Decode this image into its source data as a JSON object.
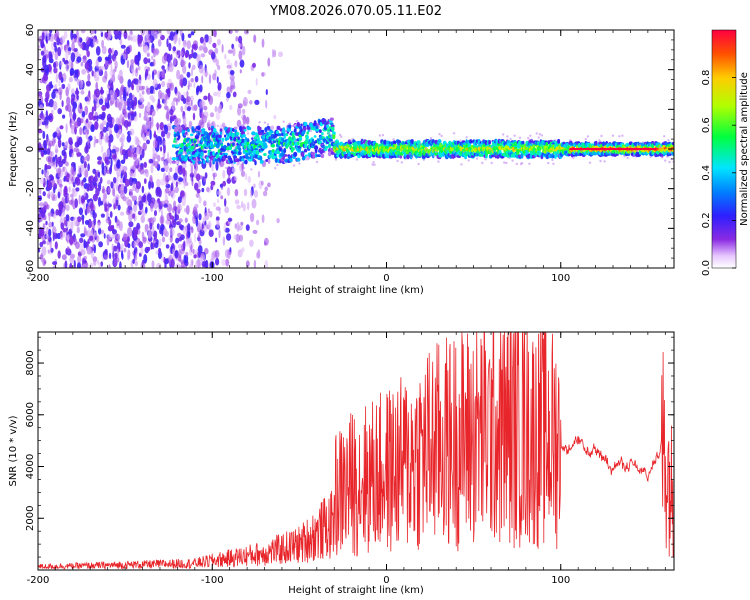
{
  "title": "YM08.2026.070.05.11.E02",
  "colors": {
    "snr_line": "#e8252a",
    "background": "#ffffff"
  },
  "chart_data": [
    {
      "type": "heatmap",
      "xlabel": "Height of straight line (km)",
      "ylabel": "Frequency (Hz)",
      "xlim": [
        -200,
        165
      ],
      "ylim": [
        -60,
        60
      ],
      "xticks": [
        "-200",
        "-100",
        "0",
        "100"
      ],
      "yticks": [
        "60",
        "40",
        "20",
        "0",
        "-20",
        "-40",
        "-60"
      ],
      "colorbar": {
        "label": "Normalized spectral amplitude",
        "range": [
          0,
          1
        ],
        "ticks": [
          "0.0",
          "0.2",
          "0.4",
          "0.6",
          "0.8"
        ],
        "colormap": "rainbow (purple to red)"
      },
      "features": {
        "noise_region_km": [
          -200,
          -70
        ],
        "signal_band_center_hz": 0,
        "strong_band_km": [
          105,
          160
        ]
      }
    },
    {
      "type": "line",
      "xlabel": "Height of straight line (km)",
      "ylabel": "SNR (10 * v/v)",
      "xlim": [
        -200,
        165
      ],
      "ylim": [
        0,
        9200
      ],
      "xticks": [
        "-200",
        "-100",
        "0",
        "100"
      ],
      "yticks": [
        "2000",
        "4000",
        "6000",
        "8000"
      ],
      "series_envelope": {
        "x": [
          -200,
          -150,
          -110,
          -90,
          -70,
          -50,
          -35,
          -20,
          -5,
          10,
          25,
          40,
          55,
          70,
          85,
          100,
          110,
          120,
          130,
          140,
          150,
          158,
          165
        ],
        "y": [
          200,
          300,
          400,
          700,
          1000,
          1500,
          2500,
          3200,
          3500,
          3900,
          4500,
          4800,
          5100,
          5200,
          5000,
          4800,
          4700,
          4400,
          4200,
          4000,
          3500,
          5000,
          2500
        ]
      },
      "peak": {
        "x": 78,
        "y": 9100
      }
    }
  ]
}
